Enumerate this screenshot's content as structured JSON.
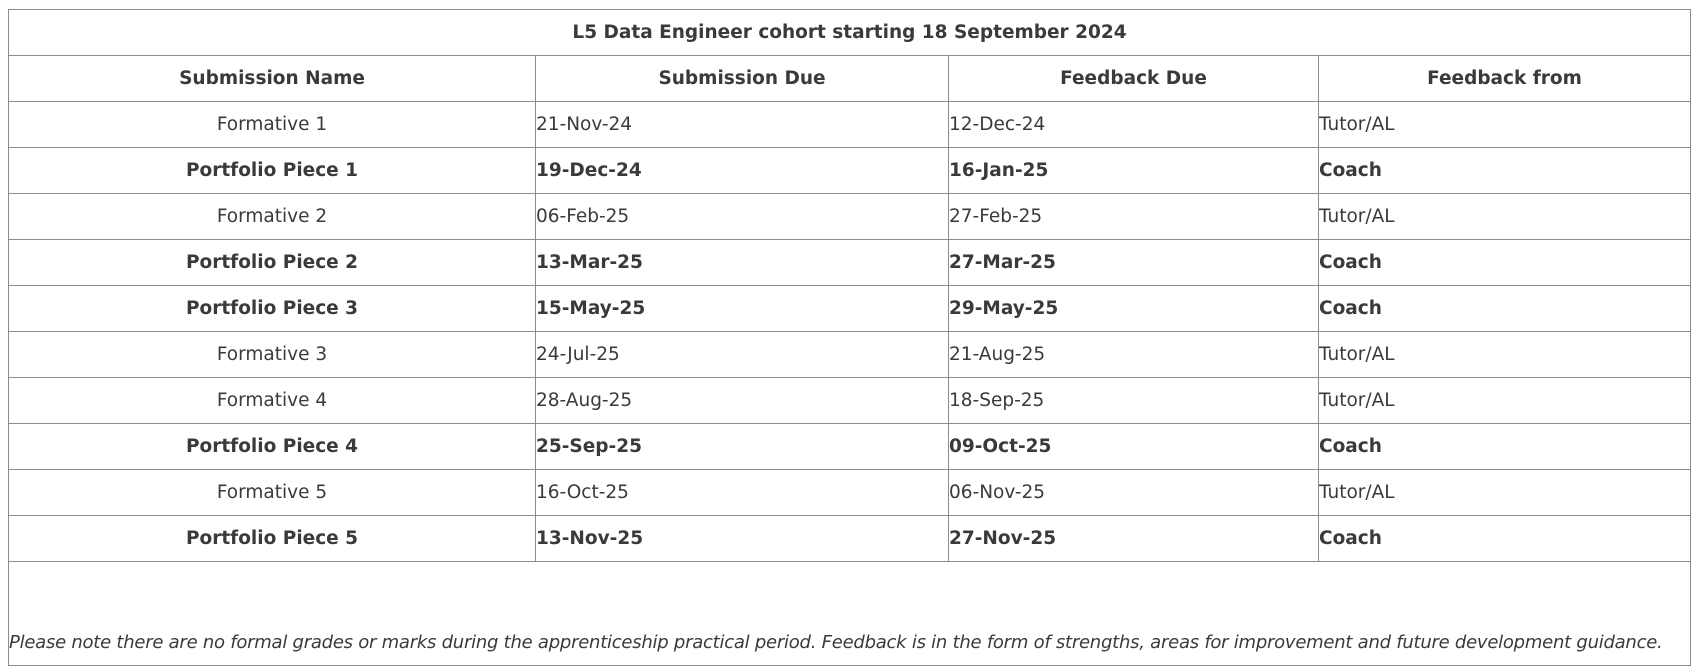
{
  "table": {
    "title": "L5 Data Engineer cohort starting 18 September 2024",
    "headers": [
      "Submission Name",
      "Submission Due",
      "Feedback Due",
      "Feedback from"
    ],
    "rows": [
      {
        "name": "Formative 1",
        "submission_due": "21-Nov-24",
        "feedback_due": "12-Dec-24",
        "feedback_from": "Tutor/AL",
        "bold": false
      },
      {
        "name": "Portfolio Piece 1",
        "submission_due": "19-Dec-24",
        "feedback_due": "16-Jan-25",
        "feedback_from": "Coach",
        "bold": true
      },
      {
        "name": "Formative 2",
        "submission_due": "06-Feb-25",
        "feedback_due": "27-Feb-25",
        "feedback_from": "Tutor/AL",
        "bold": false
      },
      {
        "name": "Portfolio Piece 2",
        "submission_due": "13-Mar-25",
        "feedback_due": "27-Mar-25",
        "feedback_from": "Coach",
        "bold": true
      },
      {
        "name": "Portfolio Piece 3",
        "submission_due": "15-May-25",
        "feedback_due": "29-May-25",
        "feedback_from": "Coach",
        "bold": true
      },
      {
        "name": "Formative 3",
        "submission_due": "24-Jul-25",
        "feedback_due": "21-Aug-25",
        "feedback_from": "Tutor/AL",
        "bold": false
      },
      {
        "name": "Formative 4",
        "submission_due": "28-Aug-25",
        "feedback_due": "18-Sep-25",
        "feedback_from": "Tutor/AL",
        "bold": false
      },
      {
        "name": "Portfolio Piece 4",
        "submission_due": "25-Sep-25",
        "feedback_due": "09-Oct-25",
        "feedback_from": "Coach",
        "bold": true
      },
      {
        "name": "Formative 5",
        "submission_due": "16-Oct-25",
        "feedback_due": "06-Nov-25",
        "feedback_from": "Tutor/AL",
        "bold": false
      },
      {
        "name": "Portfolio Piece 5",
        "submission_due": "13-Nov-25",
        "feedback_due": "27-Nov-25",
        "feedback_from": "Coach",
        "bold": true
      }
    ],
    "note": "Please note there are no formal grades or marks during the apprenticeship practical period. Feedback is in the form of strengths, areas for improvement and future development guidance."
  }
}
